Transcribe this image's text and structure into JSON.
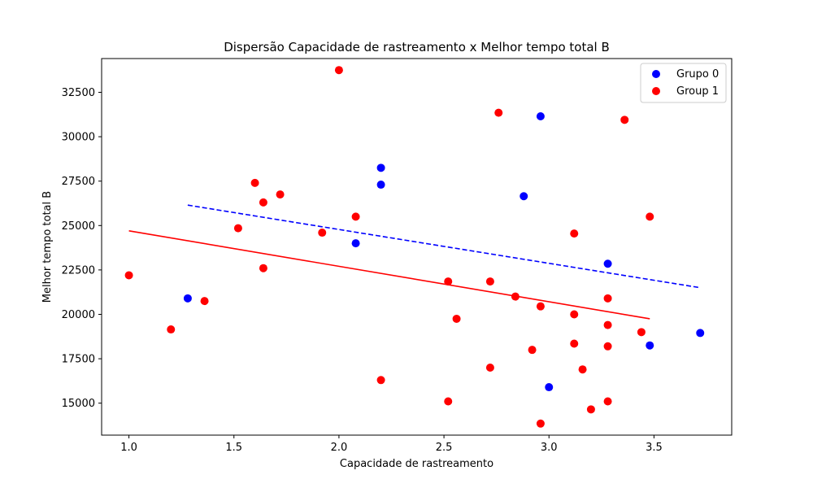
{
  "chart_data": {
    "type": "scatter",
    "title": "Dispersão Capacidade de rastreamento x Melhor tempo total B",
    "xlabel": "Capacidade de rastreamento",
    "ylabel": "Melhor tempo total B",
    "xlim": [
      0.87,
      3.87
    ],
    "ylim": [
      13200,
      34400
    ],
    "x_ticks": [
      1.0,
      1.5,
      2.0,
      2.5,
      3.0,
      3.5
    ],
    "x_tick_labels": [
      "1.0",
      "1.5",
      "2.0",
      "2.5",
      "3.0",
      "3.5"
    ],
    "y_ticks": [
      15000,
      17500,
      20000,
      22500,
      25000,
      27500,
      30000,
      32500
    ],
    "y_tick_labels": [
      "15000",
      "17500",
      "20000",
      "22500",
      "25000",
      "27500",
      "30000",
      "32500"
    ],
    "grid": false,
    "legend_position": "top-right",
    "series": [
      {
        "name": "Grupo 0",
        "color": "#0000ff",
        "points": [
          [
            1.28,
            20900
          ],
          [
            2.08,
            24000
          ],
          [
            2.2,
            28250
          ],
          [
            2.2,
            27300
          ],
          [
            2.88,
            26650
          ],
          [
            2.96,
            31150
          ],
          [
            3.0,
            15900
          ],
          [
            3.28,
            22850
          ],
          [
            3.48,
            18250
          ],
          [
            3.72,
            18950
          ]
        ],
        "trend": {
          "x": [
            1.28,
            3.72
          ],
          "y": [
            26150,
            21500
          ],
          "style": "dashed"
        }
      },
      {
        "name": "Group 1",
        "color": "#ff0000",
        "points": [
          [
            1.0,
            22200
          ],
          [
            1.2,
            19150
          ],
          [
            1.36,
            20750
          ],
          [
            1.52,
            24850
          ],
          [
            1.6,
            27400
          ],
          [
            1.64,
            26300
          ],
          [
            1.64,
            22600
          ],
          [
            1.72,
            26750
          ],
          [
            1.92,
            24600
          ],
          [
            2.0,
            33750
          ],
          [
            2.08,
            25500
          ],
          [
            2.2,
            16300
          ],
          [
            2.52,
            21850
          ],
          [
            2.52,
            15100
          ],
          [
            2.56,
            19750
          ],
          [
            2.72,
            21850
          ],
          [
            2.72,
            17000
          ],
          [
            2.76,
            31350
          ],
          [
            2.84,
            21000
          ],
          [
            2.92,
            18000
          ],
          [
            2.96,
            20450
          ],
          [
            2.96,
            13850
          ],
          [
            3.12,
            24550
          ],
          [
            3.12,
            20000
          ],
          [
            3.12,
            18350
          ],
          [
            3.16,
            16900
          ],
          [
            3.2,
            14650
          ],
          [
            3.28,
            20900
          ],
          [
            3.28,
            19400
          ],
          [
            3.28,
            18200
          ],
          [
            3.28,
            15100
          ],
          [
            3.36,
            30950
          ],
          [
            3.44,
            19000
          ],
          [
            3.48,
            25500
          ]
        ],
        "trend": {
          "x": [
            1.0,
            3.48
          ],
          "y": [
            24700,
            19750
          ],
          "style": "solid"
        }
      }
    ]
  }
}
